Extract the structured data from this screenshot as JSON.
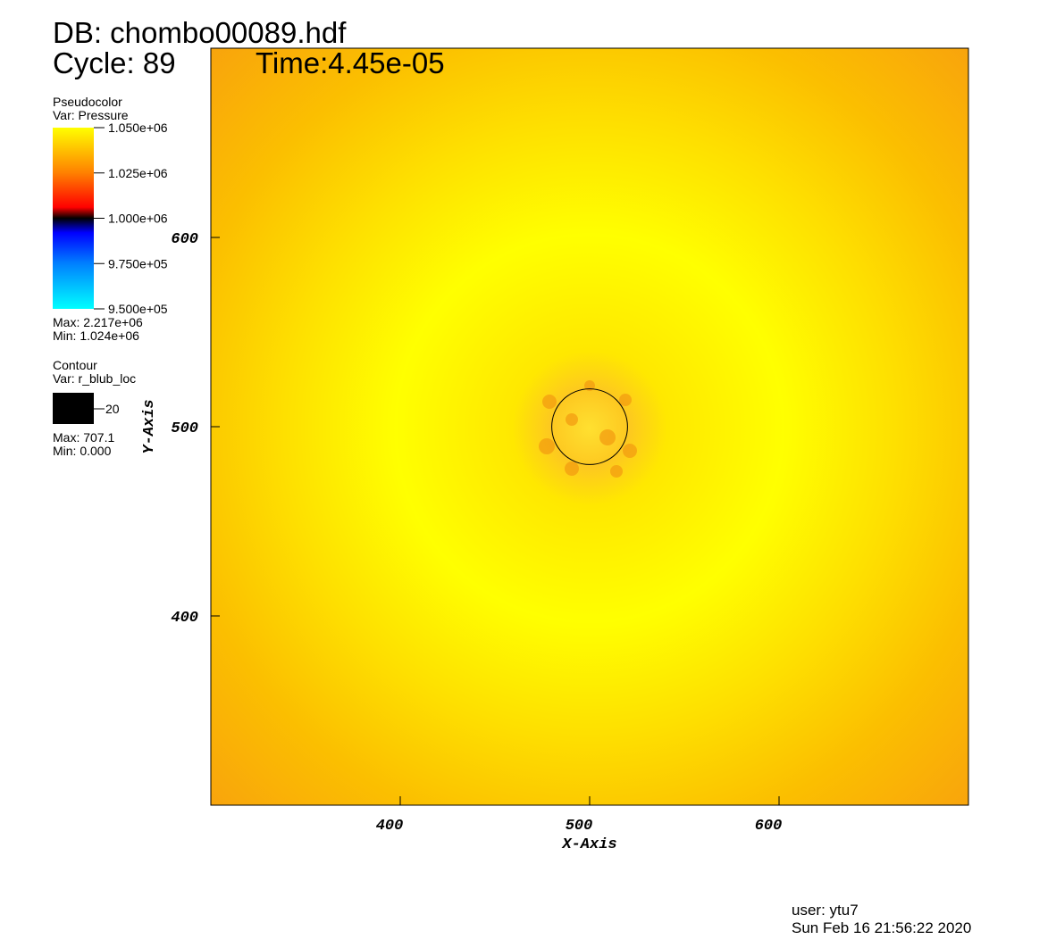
{
  "header": {
    "database": "DB: chombo00089.hdf",
    "cycle": "Cycle: 89",
    "time": "Time:4.45e-05"
  },
  "pseudocolor": {
    "title": "Pseudocolor",
    "var": "Var: Pressure",
    "range": [
      950000,
      1050000
    ],
    "ticks": [
      {
        "value": 1050000,
        "label": "1.050e+06"
      },
      {
        "value": 1025000,
        "label": "1.025e+06"
      },
      {
        "value": 1000000,
        "label": "1.000e+06"
      },
      {
        "value": 975000,
        "label": "9.750e+05"
      },
      {
        "value": 950000,
        "label": "9.500e+05"
      }
    ],
    "max": "Max: 2.217e+06",
    "min": "Min:  1.024e+06"
  },
  "contour": {
    "title": "Contour",
    "var": "Var: r_blub_loc",
    "level": 20,
    "max": "Max: 707.1",
    "min": "Min: 0.000"
  },
  "axes": {
    "xlabel": "X-Axis",
    "ylabel": "Y-Axis",
    "xlim": [
      300,
      700
    ],
    "ylim": [
      300,
      700
    ],
    "xticks": [
      400,
      500,
      600
    ],
    "yticks": [
      400,
      500,
      600
    ]
  },
  "footer": {
    "user": "user: ytu7",
    "date": "Sun Feb 16 21:56:22 2020"
  }
}
